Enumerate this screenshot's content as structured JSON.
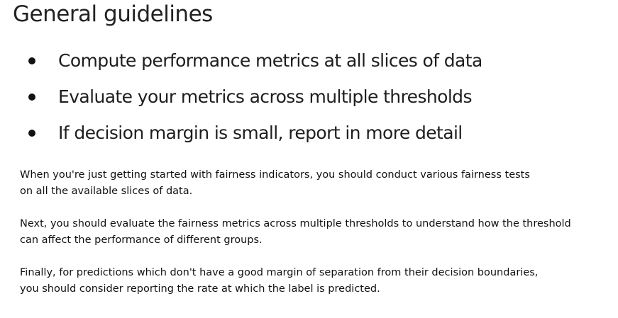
{
  "title": "General guidelines",
  "bullets": [
    "Compute performance metrics at all slices of data",
    "Evaluate your metrics across multiple thresholds",
    "If decision margin is small, report in more detail"
  ],
  "notes": [
    {
      "lines": [
        "When you're just getting started with fairness indicators, you should conduct various fairness tests",
        "on all the available slices of data."
      ]
    },
    {
      "lines": [
        "Next, you should evaluate the fairness metrics across multiple thresholds to understand how the threshold",
        "can affect the performance of different groups."
      ]
    },
    {
      "lines": [
        "Finally, for predictions which don't have a good margin of separation from their decision boundaries,",
        "you should consider reporting the rate at which the label is predicted."
      ]
    }
  ]
}
